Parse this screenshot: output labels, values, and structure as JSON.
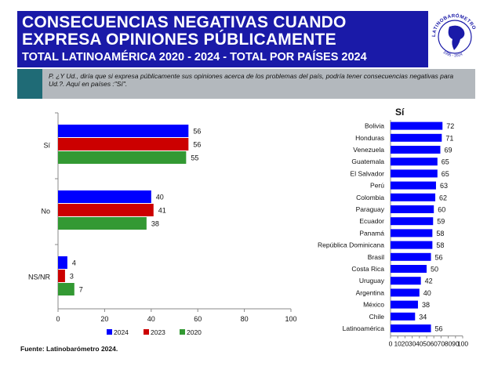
{
  "header": {
    "title_line1": "CONSECUENCIAS NEGATIVAS CUANDO",
    "title_line2": "EXPRESA OPINIONES PÚBLICAMENTE",
    "subtitle": "TOTAL LATINOAMÉRICA 2020 - 2024 - TOTAL POR PAÍSES 2024",
    "logo_text": "LATINOBARÓMETRO",
    "logo_years": "1995 - 2024",
    "bg_color": "#1a1aa8"
  },
  "question": "P. ¿Y Ud., diría que si expresa públicamente sus opiniones acerca de los problemas del país, podría tener consecuencias negativas para Ud.?. Aquí en países :\"Sí\".",
  "source": "Fuente: Latinobarómetro 2024.",
  "chart_data": [
    {
      "type": "bar",
      "orientation": "horizontal",
      "categories": [
        "Sí",
        "No",
        "NS/NR"
      ],
      "series": [
        {
          "name": "2024",
          "color": "#0000ff",
          "values": [
            56,
            40,
            4
          ]
        },
        {
          "name": "2023",
          "color": "#cc0000",
          "values": [
            56,
            41,
            3
          ]
        },
        {
          "name": "2020",
          "color": "#339933",
          "values": [
            55,
            38,
            7
          ]
        }
      ],
      "xlim": [
        0,
        100
      ],
      "xticks": [
        0,
        20,
        40,
        60,
        80,
        100
      ],
      "legend_position": "bottom"
    },
    {
      "type": "bar",
      "orientation": "horizontal",
      "title": "Sí",
      "categories": [
        "Bolivia",
        "Honduras",
        "Venezuela",
        "Guatemala",
        "El Salvador",
        "Perú",
        "Colombia",
        "Paraguay",
        "Ecuador",
        "Panamá",
        "República Dominicana",
        "Brasil",
        "Costa Rica",
        "Uruguay",
        "Argentina",
        "México",
        "Chile",
        "Latinoamérica"
      ],
      "values": [
        72,
        71,
        69,
        65,
        65,
        63,
        62,
        60,
        59,
        58,
        58,
        56,
        50,
        42,
        40,
        38,
        34,
        56
      ],
      "color": "#0000ff",
      "xlim": [
        0,
        100
      ],
      "xticks": [
        0,
        10,
        20,
        30,
        40,
        50,
        60,
        70,
        80,
        90,
        100
      ]
    }
  ]
}
